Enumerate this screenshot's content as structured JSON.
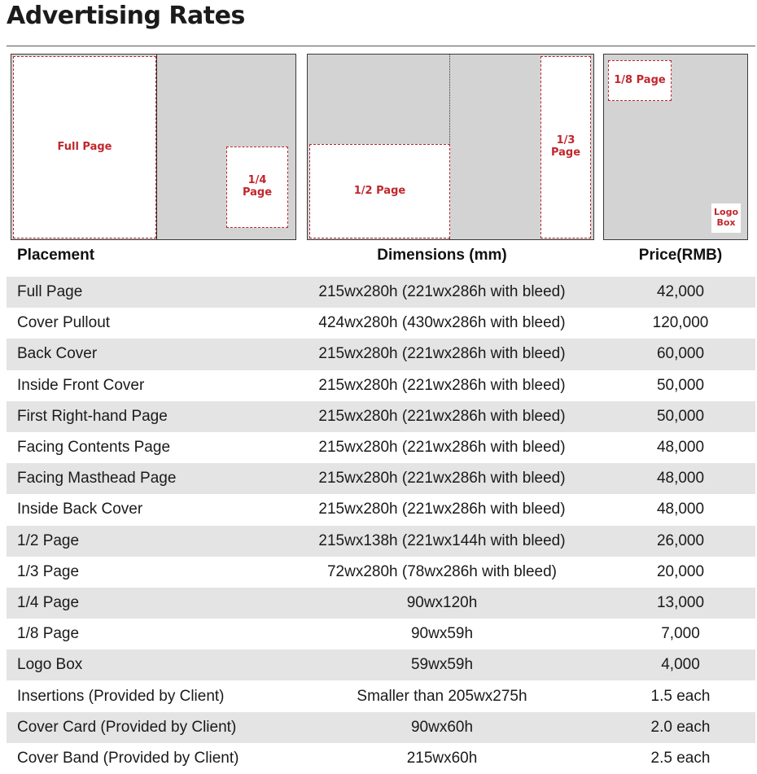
{
  "title": "Advertising Rates",
  "diagrams": {
    "full_page": "Full Page",
    "quarter_page": "1/4\nPage",
    "half_page": "1/2 Page",
    "third_page": "1/3\nPage",
    "eighth_page": "1/8 Page",
    "logo_box": "Logo\nBox"
  },
  "table": {
    "headers": {
      "placement": "Placement",
      "dimensions": "Dimensions (mm)",
      "price": "Price(RMB)"
    },
    "rows": [
      {
        "placement": "Full Page",
        "dimensions": "215wx280h (221wx286h with bleed)",
        "price": "42,000"
      },
      {
        "placement": "Cover Pullout",
        "dimensions": "424wx280h (430wx286h with bleed)",
        "price": "120,000"
      },
      {
        "placement": "Back Cover",
        "dimensions": "215wx280h (221wx286h with bleed)",
        "price": "60,000"
      },
      {
        "placement": "Inside Front Cover",
        "dimensions": "215wx280h (221wx286h with bleed)",
        "price": "50,000"
      },
      {
        "placement": "First Right-hand Page",
        "dimensions": "215wx280h (221wx286h with bleed)",
        "price": "50,000"
      },
      {
        "placement": "Facing Contents Page",
        "dimensions": "215wx280h (221wx286h with bleed)",
        "price": "48,000"
      },
      {
        "placement": "Facing Masthead Page",
        "dimensions": "215wx280h (221wx286h with bleed)",
        "price": "48,000"
      },
      {
        "placement": "Inside Back Cover",
        "dimensions": "215wx280h (221wx286h with bleed)",
        "price": "48,000"
      },
      {
        "placement": "1/2 Page",
        "dimensions": "215wx138h (221wx144h with bleed)",
        "price": "26,000"
      },
      {
        "placement": "1/3 Page",
        "dimensions": "72wx280h (78wx286h with bleed)",
        "price": "20,000"
      },
      {
        "placement": "1/4 Page",
        "dimensions": "90wx120h",
        "price": "13,000"
      },
      {
        "placement": "1/8 Page",
        "dimensions": "90wx59h",
        "price": "7,000"
      },
      {
        "placement": "Logo Box",
        "dimensions": "59wx59h",
        "price": "4,000"
      },
      {
        "placement": "Insertions (Provided by Client)",
        "dimensions": "Smaller than 205wx275h",
        "price": "1.5 each"
      },
      {
        "placement": "Cover Card (Provided by Client)",
        "dimensions": "90wx60h",
        "price": "2.0 each"
      },
      {
        "placement": "Cover Band (Provided by Client)",
        "dimensions": "215wx60h",
        "price": "2.5 each"
      }
    ]
  }
}
